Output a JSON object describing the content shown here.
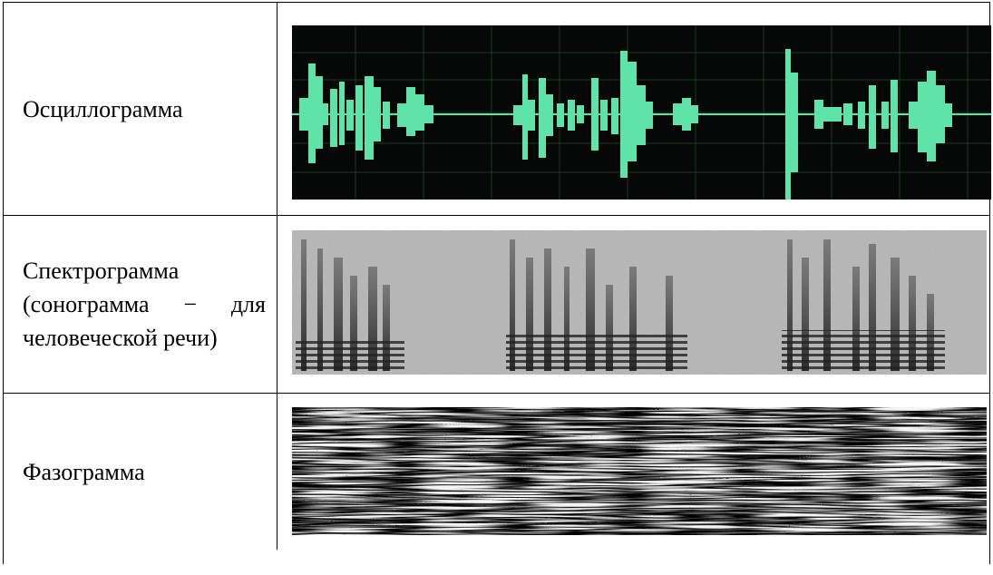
{
  "table": {
    "rows": [
      [
        "Осциллограмма"
      ],
      [
        "Спектрограмма (сонограмма − для человеческой речи)"
      ],
      [
        "Фазограмма"
      ]
    ]
  }
}
